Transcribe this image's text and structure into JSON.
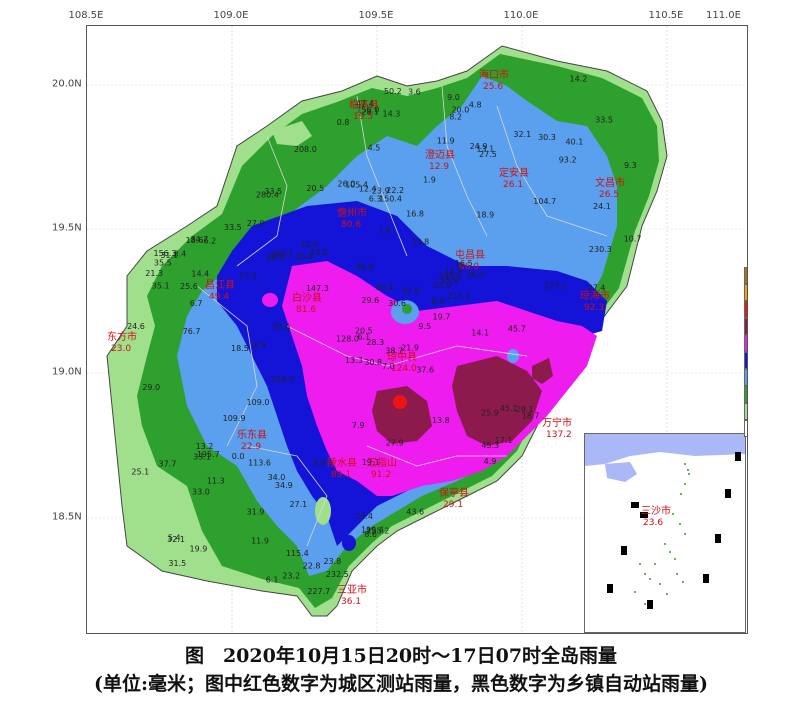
{
  "axes": {
    "lon_ticks": [
      "108.5E",
      "109.0E",
      "109.5E",
      "110.0E",
      "110.5E",
      "111.0E"
    ],
    "lat_ticks": [
      "20.0N",
      "19.5N",
      "19.0N",
      "18.5N"
    ]
  },
  "legend": {
    "levels": [
      {
        "label": "800",
        "color": "#a8701c"
      },
      {
        "label": "600",
        "color": "#f5a100"
      },
      {
        "label": "400",
        "color": "#ee1414"
      },
      {
        "label": "250",
        "color": "#8c1a4c"
      },
      {
        "label": "100",
        "color": "#ee1cee"
      },
      {
        "label": "50",
        "color": "#1414d8"
      },
      {
        "label": "25",
        "color": "#5aa0ee"
      },
      {
        "label": "10",
        "color": "#2ea02e"
      },
      {
        "label": "1",
        "color": "#a0e08c"
      },
      {
        "label": "",
        "color": "#ffffff"
      }
    ]
  },
  "cities": [
    {
      "name": "海口市",
      "value": "25.6"
    },
    {
      "name": "临高县",
      "value": "19.5"
    },
    {
      "name": "澄迈县",
      "value": "12.9"
    },
    {
      "name": "定安县",
      "value": "26.1"
    },
    {
      "name": "文昌市",
      "value": "26.5"
    },
    {
      "name": "儋州市",
      "value": "80.6"
    },
    {
      "name": "屯昌县",
      "value": "66.0"
    },
    {
      "name": "白沙县",
      "value": "81.6"
    },
    {
      "name": "昌江县",
      "value": "49.4"
    },
    {
      "name": "琼海市",
      "value": "92.3"
    },
    {
      "name": "东方市",
      "value": "23.0"
    },
    {
      "name": "琼中县",
      "value": "124.0"
    },
    {
      "name": "乐东县",
      "value": "22.9"
    },
    {
      "name": "五指山",
      "value": "91.2"
    },
    {
      "name": "万宁市",
      "value": "137.2"
    },
    {
      "name": "保亭县",
      "value": "29.1"
    },
    {
      "name": "陵水县",
      "value": "89.1"
    },
    {
      "name": "三亚市",
      "value": "36.1"
    }
  ],
  "inset": {
    "name": "三沙市",
    "value": "23.6"
  },
  "stations": [
    "7.0",
    "6.1",
    "5.4",
    "21.0",
    "34.9",
    "4.8",
    "22.2",
    "13.1",
    "9.5",
    "6.7",
    "9.3",
    "13.3",
    "18.9",
    "12.4",
    "13.8",
    "11.3",
    "14.0",
    "31.5",
    "11.9",
    "23.9",
    "15.9",
    "18.7",
    "28.1",
    "35.1",
    "25.9",
    "10.7",
    "20.5",
    "23.4",
    "29.6",
    "33.5",
    "32.1",
    "34.0",
    "29.1",
    "26.8",
    "17.3",
    "4.9",
    "6.1",
    "8.9",
    "8.6",
    "19.7",
    "33.0",
    "24.1",
    "17.1",
    "31.9",
    "43.6",
    "40.1",
    "50.2",
    "35.6",
    "31.1",
    "27.9",
    "30.3",
    "20.0",
    "0.8",
    "10.4",
    "25.1",
    "19.1",
    "22.8",
    "45.1",
    "44.4",
    "32.1",
    "33.5",
    "29.0",
    "36.0",
    "32.9",
    "19.9",
    "14.1",
    "27.4",
    "27.9",
    "47.4",
    "26.0",
    "30.6",
    "35.5",
    "24.9",
    "27.5",
    "18.5",
    "21.3",
    "109.9",
    "113.6",
    "115.4",
    "135.9",
    "93.2",
    "147.3",
    "150.4",
    "128.0",
    "37.7",
    "30.8",
    "33.5",
    "26.0",
    "33.1",
    "14.2",
    "16.8",
    "20.5",
    "45.7",
    "109.0",
    "232.5",
    "227.1",
    "195.7",
    "206.2",
    "208.0",
    "238.3",
    "13.2",
    "12.0",
    "37.6",
    "14.4",
    "21.9",
    "12.9",
    "23.8",
    "199.4",
    "156.0",
    "230.3",
    "280.4",
    "156.3",
    "227.7",
    "3.6",
    "4.5",
    "7.4",
    "6.9",
    "1.9",
    "13.8",
    "14.3",
    "24.6",
    "8.2",
    "7.9",
    "9.0",
    "16.5",
    "23.2",
    "11.9",
    "45.3",
    "34.7",
    "38.7",
    "3.4",
    "6.2",
    "18.6",
    "25.6",
    "27.1",
    "28.3",
    "9.0",
    "6.3",
    "104.7",
    "227.3",
    "155.2",
    "76.7",
    "105.4",
    "0.0"
  ],
  "caption": {
    "line1": "图　2020年10月15日20时～17日07时全岛雨量",
    "line2": "(单位:毫米；图中红色数字为城区测站雨量，黑色数字为乡镇自动站雨量)"
  }
}
